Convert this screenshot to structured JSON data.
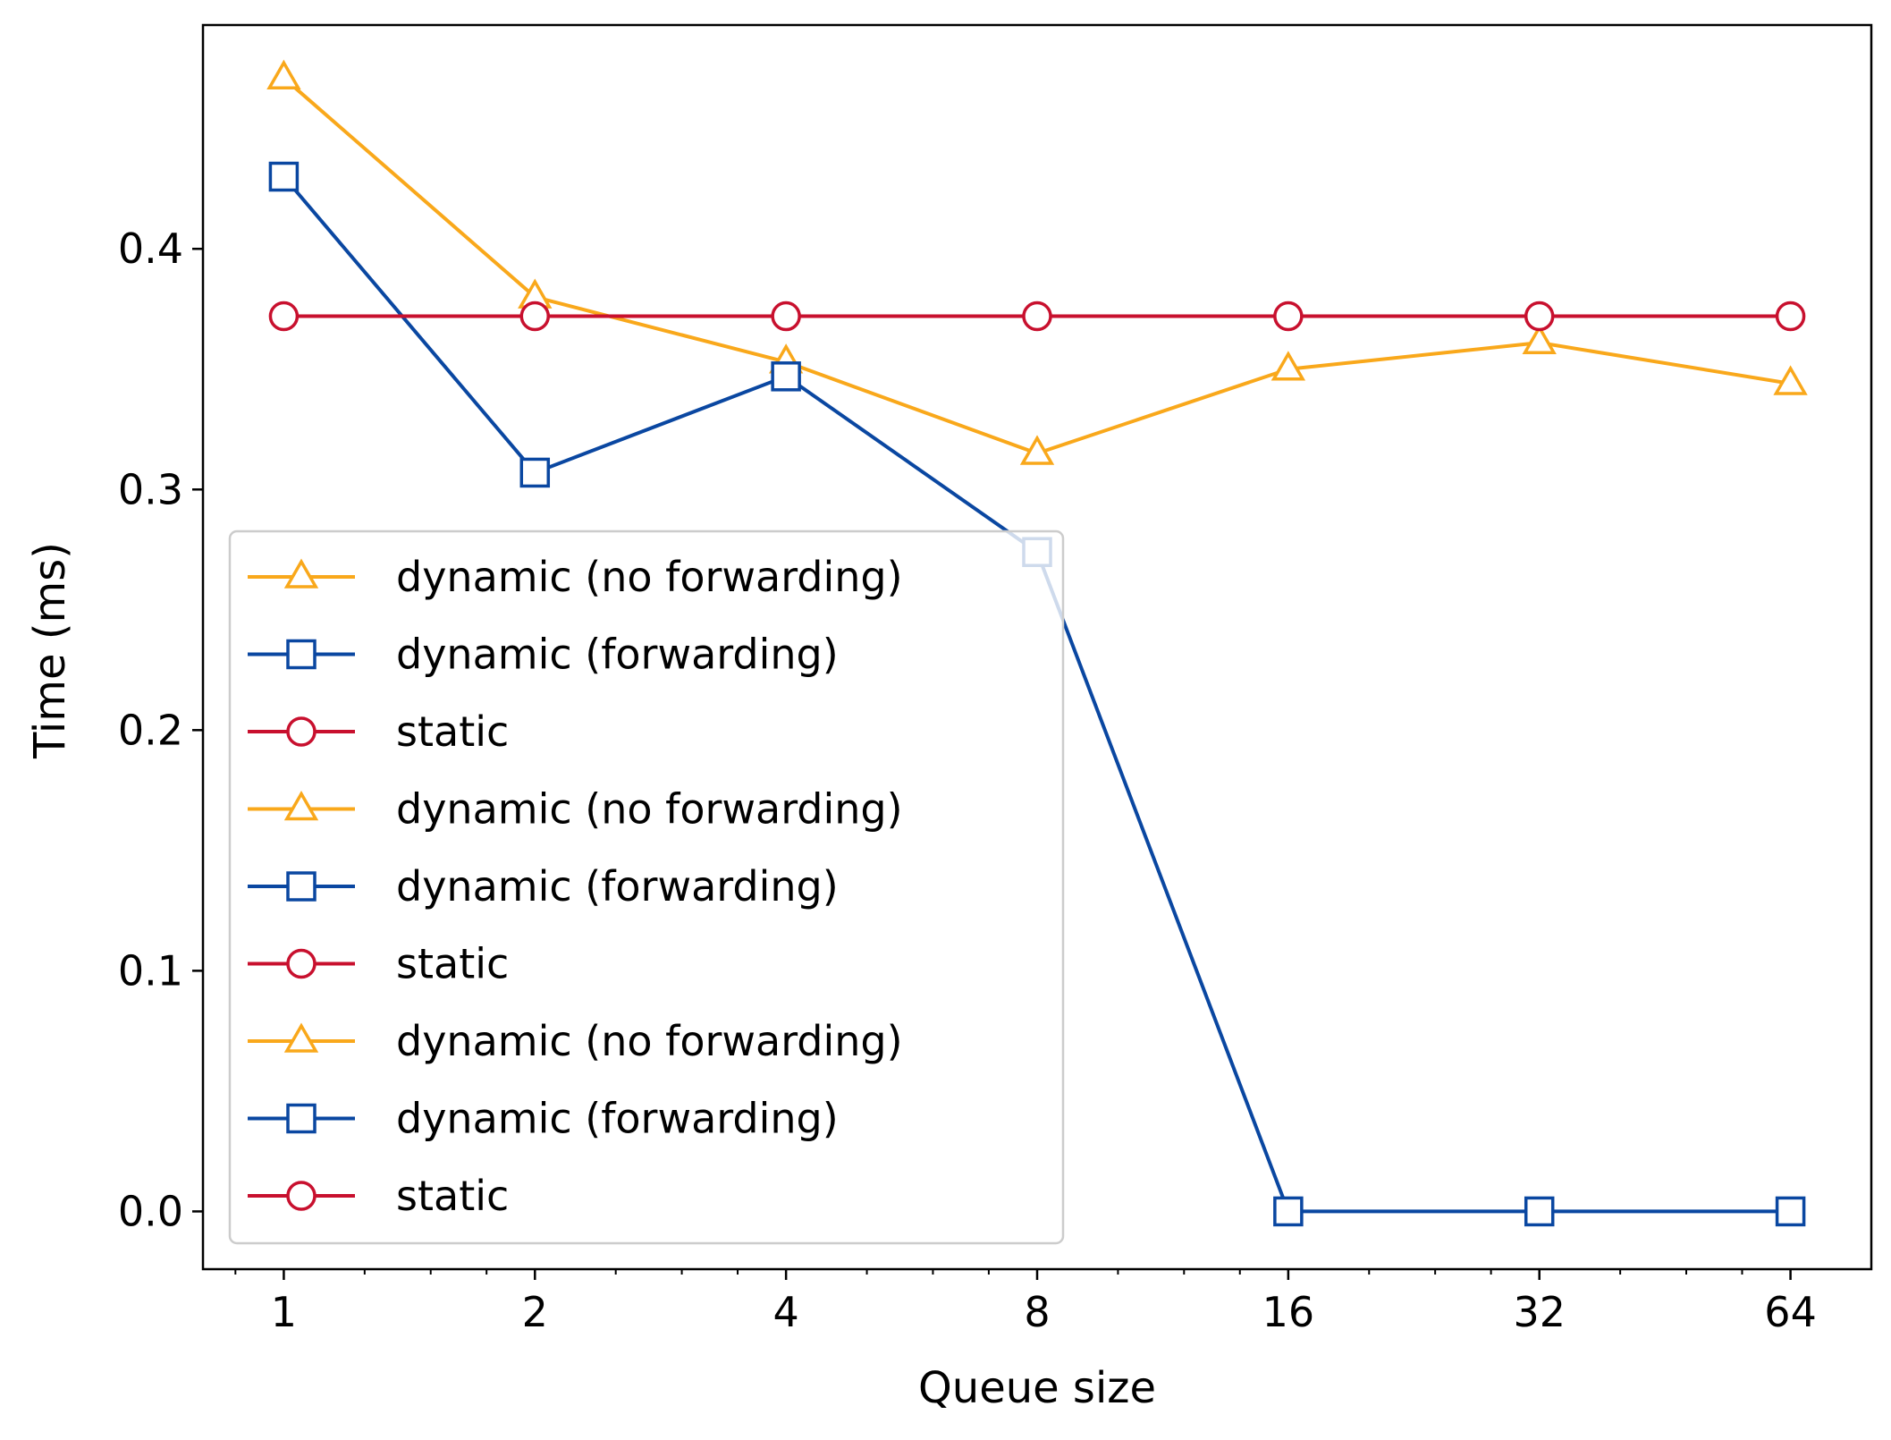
{
  "chart_data": {
    "type": "line",
    "title": "",
    "xlabel": "Queue size",
    "ylabel": "Time (ms)",
    "x_scale": "log2",
    "categories": [
      "1",
      "2",
      "4",
      "8",
      "16",
      "32",
      "64"
    ],
    "x": [
      1,
      2,
      4,
      8,
      16,
      32,
      64
    ],
    "xlim": [
      0.8,
      80
    ],
    "ylim": [
      -0.024,
      0.493
    ],
    "yticks": [
      0.0,
      0.1,
      0.2,
      0.3,
      0.4
    ],
    "ytick_labels": [
      "0.0",
      "0.1",
      "0.2",
      "0.3",
      "0.4"
    ],
    "grid": false,
    "legend_position": "lower left",
    "series": [
      {
        "name": "dynamic (no forwarding)",
        "color": "#f9a81b",
        "marker": "triangle",
        "values": [
          0.471,
          0.38,
          0.353,
          0.315,
          0.35,
          0.361,
          0.344
        ]
      },
      {
        "name": "dynamic (forwarding)",
        "color": "#0a47a1",
        "marker": "square",
        "values": [
          0.43,
          0.307,
          0.347,
          0.274,
          0.0,
          0.0,
          0.0
        ]
      },
      {
        "name": "static",
        "color": "#c8102e",
        "marker": "circle",
        "values": [
          0.372,
          0.372,
          0.372,
          0.372,
          0.372,
          0.372,
          0.372
        ]
      }
    ],
    "legend_entries": [
      "dynamic (no forwarding)",
      "dynamic (forwarding)",
      "static",
      "dynamic (no forwarding)",
      "dynamic (forwarding)",
      "static",
      "dynamic (no forwarding)",
      "dynamic (forwarding)",
      "static"
    ]
  }
}
